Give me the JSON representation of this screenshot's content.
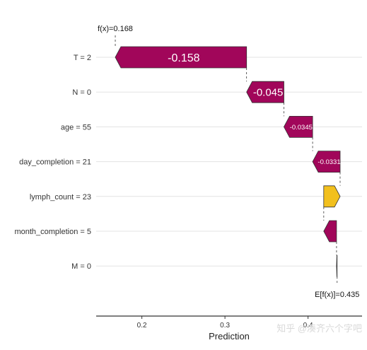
{
  "chart_data": {
    "type": "waterfall",
    "xlabel": "Prediction",
    "xlim": [
      0.145,
      0.465
    ],
    "x_ticks": [
      0.2,
      0.3,
      0.4
    ],
    "x_tick_labels": [
      "0.2",
      "0.3",
      "0.4"
    ],
    "f_x": 0.168,
    "f_x_label": "f(x)=0.168",
    "expected_value": 0.435,
    "expected_value_label": "E[f(x)]=0.435",
    "grid": "horizontal",
    "bars": [
      {
        "feature": "T = 2",
        "value": -0.158,
        "label": "-0.158"
      },
      {
        "feature": "N = 0",
        "value": -0.045,
        "label": "-0.045"
      },
      {
        "feature": "age = 55",
        "value": -0.0345,
        "label": "-0.0345"
      },
      {
        "feature": "day_completion = 21",
        "value": -0.0331,
        "label": "-0.0331"
      },
      {
        "feature": "lymph_count = 23",
        "value": 0.0197,
        "label": ""
      },
      {
        "feature": "month_completion = 5",
        "value": -0.0154,
        "label": ""
      },
      {
        "feature": "M = 0",
        "value": -0.0007,
        "label": ""
      }
    ],
    "colors": {
      "negative": "#a1065a",
      "positive": "#f2c01d",
      "outline": "#333333"
    }
  },
  "watermark": "知乎 @凑齐六个字吧"
}
